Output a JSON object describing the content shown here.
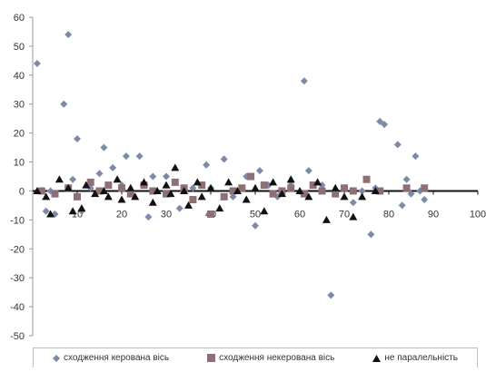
{
  "chart_data": {
    "type": "scatter",
    "xlim": [
      0,
      100
    ],
    "ylim": [
      -50,
      60
    ],
    "x_ticks": [
      10,
      20,
      30,
      40,
      50,
      60,
      70,
      80,
      90,
      100
    ],
    "y_ticks": [
      60,
      50,
      40,
      30,
      20,
      10,
      0,
      -10,
      -20,
      -30,
      -40,
      -50
    ],
    "grid": false,
    "legend_placement": "bottom",
    "series": [
      {
        "name": "сходження керована вісь",
        "marker": "diamond",
        "color": "#7b8aa8",
        "points": [
          [
            1,
            44
          ],
          [
            3,
            -7
          ],
          [
            4,
            0
          ],
          [
            5,
            -8
          ],
          [
            7,
            30
          ],
          [
            8,
            54
          ],
          [
            9,
            4
          ],
          [
            10,
            18
          ],
          [
            11,
            -7
          ],
          [
            13,
            1
          ],
          [
            15,
            6
          ],
          [
            16,
            15
          ],
          [
            18,
            8
          ],
          [
            20,
            2
          ],
          [
            21,
            12
          ],
          [
            24,
            12
          ],
          [
            26,
            -9
          ],
          [
            27,
            5
          ],
          [
            30,
            5
          ],
          [
            33,
            -6
          ],
          [
            36,
            1
          ],
          [
            39,
            9
          ],
          [
            40,
            1
          ],
          [
            43,
            11
          ],
          [
            45,
            -2
          ],
          [
            48,
            5
          ],
          [
            50,
            -12
          ],
          [
            51,
            7
          ],
          [
            53,
            2
          ],
          [
            55,
            -2
          ],
          [
            58,
            3
          ],
          [
            61,
            38
          ],
          [
            62,
            7
          ],
          [
            65,
            2
          ],
          [
            67,
            -36
          ],
          [
            70,
            1
          ],
          [
            72,
            -4
          ],
          [
            74,
            0
          ],
          [
            76,
            -15
          ],
          [
            77,
            1
          ],
          [
            78,
            24
          ],
          [
            79,
            23
          ],
          [
            82,
            16
          ],
          [
            83,
            -5
          ],
          [
            84,
            4
          ],
          [
            85,
            -1
          ],
          [
            86,
            12
          ],
          [
            87,
            0
          ],
          [
            88,
            -3
          ]
        ]
      },
      {
        "name": "сходження некерована вісь",
        "marker": "square",
        "color": "#8d6f76",
        "points": [
          [
            2,
            0
          ],
          [
            5,
            -1
          ],
          [
            8,
            1
          ],
          [
            10,
            -2
          ],
          [
            13,
            3
          ],
          [
            15,
            0
          ],
          [
            17,
            2
          ],
          [
            20,
            1
          ],
          [
            22,
            -1
          ],
          [
            25,
            2
          ],
          [
            27,
            0
          ],
          [
            30,
            -1
          ],
          [
            32,
            3
          ],
          [
            34,
            1
          ],
          [
            36,
            -3
          ],
          [
            38,
            2
          ],
          [
            40,
            -8
          ],
          [
            43,
            -2
          ],
          [
            45,
            0
          ],
          [
            47,
            1
          ],
          [
            49,
            5
          ],
          [
            52,
            2
          ],
          [
            54,
            -1
          ],
          [
            56,
            0
          ],
          [
            58,
            1
          ],
          [
            61,
            -1
          ],
          [
            63,
            2
          ],
          [
            65,
            0
          ],
          [
            68,
            -1
          ],
          [
            70,
            1
          ],
          [
            72,
            0
          ],
          [
            75,
            4
          ],
          [
            78,
            0
          ],
          [
            84,
            1
          ],
          [
            88,
            1
          ]
        ]
      },
      {
        "name": "не паралельність",
        "marker": "triangle",
        "color": "#111111",
        "points": [
          [
            1,
            0
          ],
          [
            3,
            -2
          ],
          [
            4,
            -8
          ],
          [
            6,
            4
          ],
          [
            8,
            1
          ],
          [
            9,
            -7
          ],
          [
            11,
            -6
          ],
          [
            12,
            2
          ],
          [
            14,
            -1
          ],
          [
            16,
            0
          ],
          [
            17,
            -2
          ],
          [
            19,
            4
          ],
          [
            20,
            -3
          ],
          [
            22,
            1
          ],
          [
            23,
            -2
          ],
          [
            25,
            3
          ],
          [
            27,
            -4
          ],
          [
            28,
            0
          ],
          [
            30,
            2
          ],
          [
            31,
            -1
          ],
          [
            32,
            8
          ],
          [
            34,
            0
          ],
          [
            35,
            -5
          ],
          [
            37,
            3
          ],
          [
            38,
            -2
          ],
          [
            40,
            1
          ],
          [
            42,
            -6
          ],
          [
            44,
            3
          ],
          [
            46,
            0
          ],
          [
            48,
            -3
          ],
          [
            50,
            1
          ],
          [
            52,
            -7
          ],
          [
            54,
            3
          ],
          [
            56,
            -1
          ],
          [
            58,
            4
          ],
          [
            60,
            0
          ],
          [
            62,
            -2
          ],
          [
            64,
            3
          ],
          [
            66,
            -10
          ],
          [
            68,
            1
          ],
          [
            70,
            -2
          ],
          [
            72,
            -9
          ],
          [
            74,
            -2
          ],
          [
            77,
            0
          ]
        ]
      }
    ]
  }
}
